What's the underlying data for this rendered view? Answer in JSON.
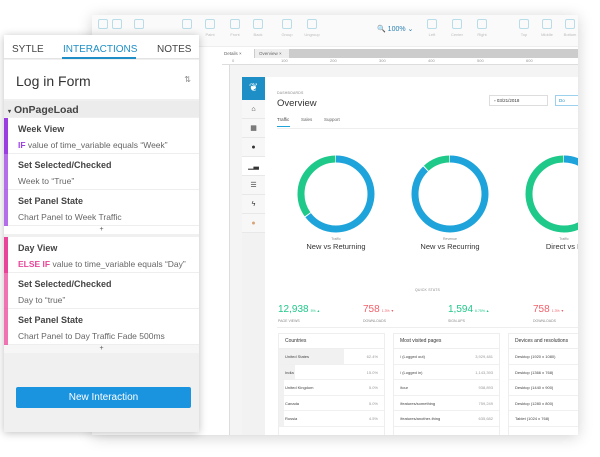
{
  "toolbar": {
    "items": [
      "Paint",
      "Front",
      "Back",
      "Group",
      "Ungroup",
      "Left",
      "Center",
      "Right",
      "Top",
      "Middle",
      "Bottom"
    ],
    "zoom": "100%"
  },
  "doc_tabs": [
    "Details",
    "Overview"
  ],
  "ruler": [
    "0",
    "100",
    "200",
    "300",
    "400",
    "500",
    "600"
  ],
  "panel": {
    "tabs": [
      "SYTLE",
      "INTERACTIONS",
      "NOTES"
    ],
    "active_tab": "INTERACTIONS",
    "title": "Log in Form",
    "event": "OnPageLoad",
    "blocks": [
      {
        "color": "#9b3fe0",
        "rows": [
          {
            "title": "Week View",
            "keyword": "IF",
            "text": " value of time_variable equals “Week”"
          },
          {
            "title": "Set Selected/Checked",
            "text": "Week to “True”"
          },
          {
            "title": "Set Panel State",
            "text": "Chart Panel to Week Traffic"
          }
        ]
      },
      {
        "color": "#e8459a",
        "rows": [
          {
            "title": "Day View",
            "keyword": "ELSE IF",
            "text": " value to time_variable equals “Day”"
          },
          {
            "title": "Set Selected/Checked",
            "text": "Day to “true”"
          },
          {
            "title": "Set Panel State",
            "text": "Chart Panel to Day Traffic Fade 500ms"
          }
        ]
      }
    ],
    "plus": "+",
    "new_button": "New Interaction"
  },
  "dashboard": {
    "breadcrumb": "DASHBOARDS",
    "title": "Overview",
    "date": "03/21/2018",
    "button": "Do",
    "tabs": [
      "Traffic",
      "Sales",
      "Support"
    ],
    "donuts": [
      {
        "label": "Traffic",
        "title": "New vs Returning",
        "blue": 0.65,
        "green": 0.35
      },
      {
        "label": "Revenue",
        "title": "New vs Recurring",
        "blue": 0.88,
        "green": 0.12
      },
      {
        "label": "Traffic",
        "title": "Direct vs P",
        "blue": 0.1,
        "green": 0.9
      }
    ],
    "colors": {
      "blue": "#1ea4db",
      "green": "#1fc98a",
      "red": "#f0616c"
    },
    "quick_stats_label": "QUICK STATS",
    "stats": [
      {
        "value": "12,938",
        "pct": "5% ▲",
        "label": "PAGE VIEWS",
        "color": "#1fc98a"
      },
      {
        "value": "758",
        "pct": "1.3% ▼",
        "label": "DOWNLOADS",
        "color": "#f0616c"
      },
      {
        "value": "1,594",
        "pct": "6.75% ▲",
        "label": "SIGN-UPS",
        "color": "#1fc98a"
      },
      {
        "value": "758",
        "pct": "1.3% ▼",
        "label": "DOWNLOADS",
        "color": "#f0616c"
      }
    ],
    "cards": [
      {
        "title": "Countries",
        "rows": [
          [
            "United States",
            "62.4%"
          ],
          [
            "India",
            "15.0%"
          ],
          [
            "United Kingdom",
            "5.0%"
          ],
          [
            "Canada",
            "5.0%"
          ],
          [
            "Russia",
            "4.5%"
          ]
        ],
        "fills": [
          0.62,
          0.15,
          0.05,
          0.05,
          0.045
        ]
      },
      {
        "title": "Most visited pages",
        "rows": [
          [
            "/ (Logged out)",
            "3,929,481"
          ],
          [
            "/ (Logged in)",
            "1,143,393"
          ],
          [
            "/tour",
            "938,893"
          ],
          [
            "/features/something",
            "759,249"
          ],
          [
            "/features/another-thing",
            "635,682"
          ]
        ]
      },
      {
        "title": "Devices and resolutions",
        "rows": [
          [
            "Desktop (1920 x 1080)",
            ""
          ],
          [
            "Desktop (1366 x 768)",
            ""
          ],
          [
            "Desktop (1440 x 900)",
            ""
          ],
          [
            "Desktop (1280 x 800)",
            ""
          ],
          [
            "Tablet (1024 x 768)",
            ""
          ]
        ]
      }
    ]
  }
}
